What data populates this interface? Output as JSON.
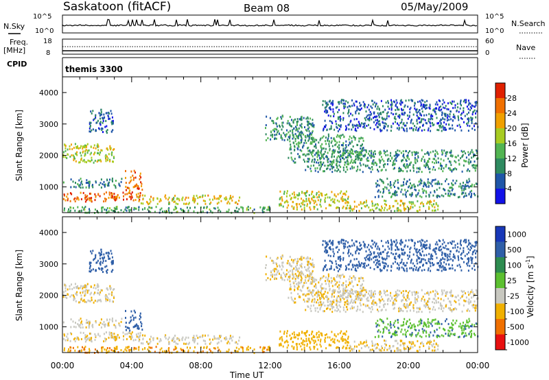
{
  "header": {
    "site": "Saskatoon (fitACF)",
    "beam": "Beam 08",
    "date": "05/May/2009"
  },
  "panels": {
    "nsky_label": "N.Sky",
    "nsky_ticks": [
      "10^5",
      "10^0"
    ],
    "nsearch_label": "N.Search",
    "nsearch_ticks": [
      "10^5",
      "10^0"
    ],
    "freq_label": "Freq.",
    "freq_unit": "[MHz]",
    "freq_ticks": [
      "18",
      "8"
    ],
    "nave_label": "Nave",
    "nave_ticks": [
      "60",
      "0"
    ],
    "cpid_label": "CPID",
    "cpid_value": "themis 3300"
  },
  "colors": {
    "power": [
      "#1212e8",
      "#1f56a8",
      "#2e8a60",
      "#52b452",
      "#a8cc22",
      "#f0a000",
      "#f07000",
      "#e02000"
    ],
    "velocity": [
      "#1838b8",
      "#2f5fa8",
      "#2e8c50",
      "#5cc030",
      "#c8c8c0",
      "#f0b000",
      "#f07000",
      "#e81010"
    ]
  },
  "chart_data": [
    {
      "type": "heatmap",
      "name": "power",
      "ylabel": "Slant Range [km]",
      "yticks": [
        1000,
        2000,
        3000,
        4000
      ],
      "ylim": [
        180,
        4500
      ],
      "colorbar_label": "Power [dB]",
      "colorbar_ticks": [
        "4",
        "8",
        "12",
        "16",
        "20",
        "24",
        "28"
      ],
      "colorbar_range": [
        0,
        32
      ]
    },
    {
      "type": "heatmap",
      "name": "velocity",
      "ylabel": "Slant Range [km]",
      "yticks": [
        1000,
        2000,
        3000,
        4000
      ],
      "ylim": [
        180,
        4500
      ],
      "colorbar_label": "Velocity [m s",
      "colorbar_label_sup": "-1",
      "colorbar_label_tail": "]",
      "colorbar_ticks": [
        "1000",
        "500",
        "100",
        "25",
        "-25",
        "-100",
        "-500",
        "-1000"
      ]
    }
  ],
  "xaxis": {
    "label": "Time UT",
    "ticks": [
      "00:00",
      "04:00",
      "08:00",
      "12:00",
      "16:00",
      "20:00",
      "00:00"
    ],
    "range_hours": [
      0,
      24
    ]
  },
  "features": [
    {
      "t": [
        0.0,
        4.5
      ],
      "r": [
        560,
        860
      ],
      "p": 27,
      "v": -20
    },
    {
      "t": [
        4.3,
        10.2
      ],
      "r": [
        480,
        760
      ],
      "p": 20,
      "v": -15
    },
    {
      "t": [
        3.6,
        4.6
      ],
      "r": [
        900,
        1550
      ],
      "p": 25,
      "v": 300
    },
    {
      "t": [
        0.0,
        3.4
      ],
      "r": [
        1000,
        1300
      ],
      "p": 10,
      "v": -10
    },
    {
      "t": [
        0.0,
        3.0
      ],
      "r": [
        1800,
        2400
      ],
      "p": 18,
      "v": -10
    },
    {
      "t": [
        1.5,
        2.9
      ],
      "r": [
        2750,
        3500
      ],
      "p": 7,
      "v": 250
    },
    {
      "t": [
        0.0,
        12.0
      ],
      "r": [
        200,
        400
      ],
      "p": 12,
      "v": -90
    },
    {
      "t": [
        11.7,
        14.5
      ],
      "r": [
        2500,
        3300
      ],
      "p": 10,
      "v": -20
    },
    {
      "t": [
        13.0,
        17.5
      ],
      "r": [
        1800,
        2700
      ],
      "p": 11,
      "v": -20
    },
    {
      "t": [
        12.5,
        16.5
      ],
      "r": [
        300,
        900
      ],
      "p": 19,
      "v": -60
    },
    {
      "t": [
        16.5,
        21.7
      ],
      "r": [
        250,
        600
      ],
      "p": 19,
      "v": -30
    },
    {
      "t": [
        14.0,
        24.0
      ],
      "r": [
        1500,
        2200
      ],
      "p": 11,
      "v": -10
    },
    {
      "t": [
        18.0,
        24.0
      ],
      "r": [
        700,
        1300
      ],
      "p": 9,
      "v": 80
    },
    {
      "t": [
        15.0,
        24.0
      ],
      "r": [
        2800,
        3800
      ],
      "p": 6,
      "v": 150
    }
  ]
}
